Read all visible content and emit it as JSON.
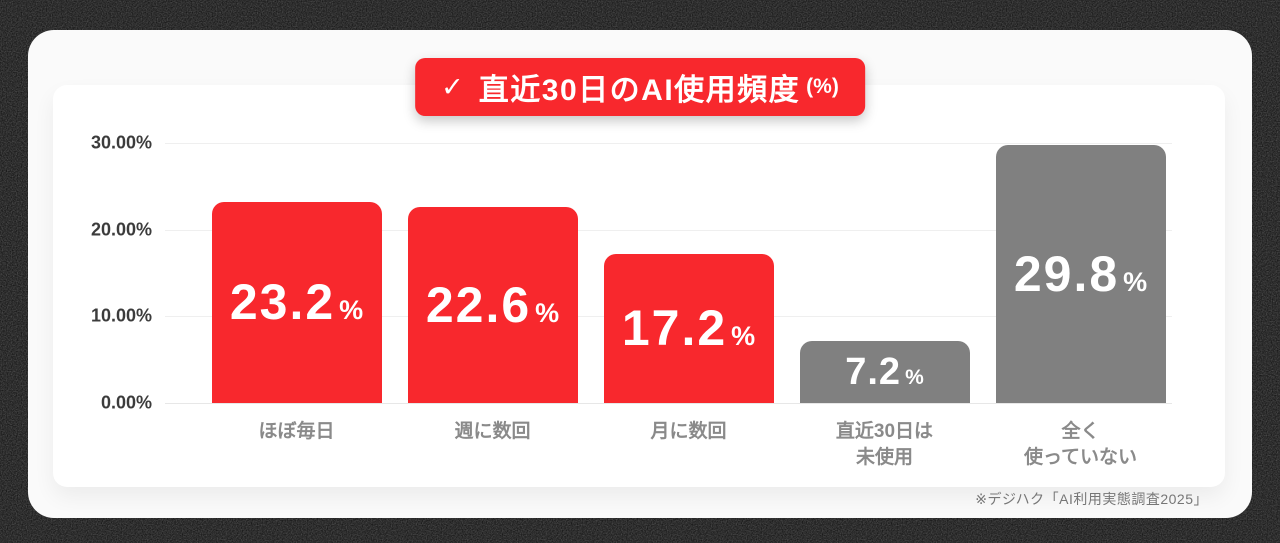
{
  "scene": {
    "background_color": "#0e0e0e",
    "card_color": "#FAFAFA",
    "panel_color": "#FFFFFF"
  },
  "title_badge": {
    "check_icon": "✓",
    "text": "直近30日のAI使用頻度",
    "suffix": "(%)",
    "background_color": "#F8282D",
    "text_color": "#FFFFFF"
  },
  "source_note": "※デジハク「AI利用実態調査2025」",
  "chart_data": {
    "type": "bar",
    "title": "直近30日のAI使用頻度(%)",
    "unit": "%",
    "categories": [
      "ほぼ毎日",
      "週に数回",
      "月に数回",
      "直近30日は\n未使用",
      "全く\n使っていない"
    ],
    "values": [
      23.2,
      22.6,
      17.2,
      7.2,
      29.8
    ],
    "value_labels": [
      "23.2",
      "22.6",
      "17.2",
      "7.2",
      "29.8"
    ],
    "bar_colors": [
      "#F8282D",
      "#F8282D",
      "#F8282D",
      "#808080",
      "#808080"
    ],
    "accent_red": "#F8282D",
    "neutral_gray": "#808080",
    "ylim": [
      0,
      30
    ],
    "ytick_labels": [
      "30.00%",
      "20.00%",
      "10.00%",
      "0.00%"
    ],
    "grid": true,
    "legend_position": "none",
    "value_label_position": "center-inside",
    "value_label_color": "#FFFFFF"
  }
}
